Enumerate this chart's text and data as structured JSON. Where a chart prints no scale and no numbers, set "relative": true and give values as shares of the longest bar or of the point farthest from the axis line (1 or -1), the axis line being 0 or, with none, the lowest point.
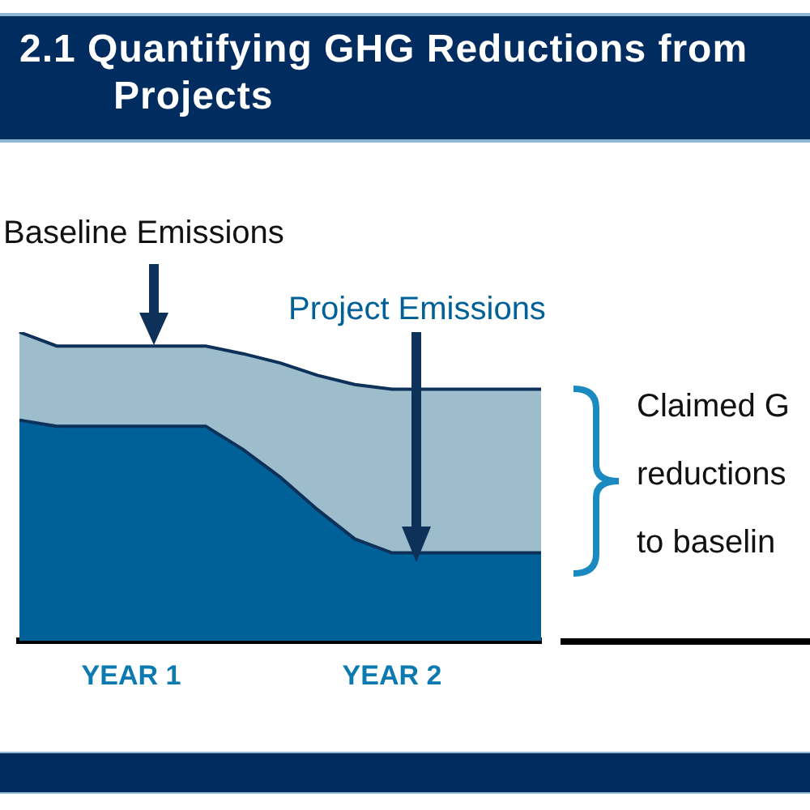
{
  "chart_data": {
    "type": "area",
    "title": "2.1 Quantifying GHG Reductions from Projects",
    "relative": true,
    "legend": false,
    "grid": false,
    "categories": [
      null,
      null,
      null,
      "YEAR 1",
      null,
      null,
      null,
      null,
      null,
      null,
      "YEAR 2",
      null,
      null,
      null,
      null
    ],
    "series": [
      {
        "name": "Baseline Emissions",
        "color": "#9dbccc",
        "values": [
          1.0,
          0.955,
          0.955,
          0.955,
          0.955,
          0.955,
          0.93,
          0.9,
          0.86,
          0.83,
          0.815,
          0.815,
          0.815,
          0.815,
          0.815
        ]
      },
      {
        "name": "Project Emissions",
        "color": "#006199",
        "values": [
          0.715,
          0.695,
          0.695,
          0.695,
          0.695,
          0.695,
          0.62,
          0.53,
          0.425,
          0.33,
          0.285,
          0.285,
          0.285,
          0.285,
          0.285
        ]
      }
    ],
    "annotations": [
      "Claimed G",
      "reductions",
      "to baselin"
    ]
  }
}
